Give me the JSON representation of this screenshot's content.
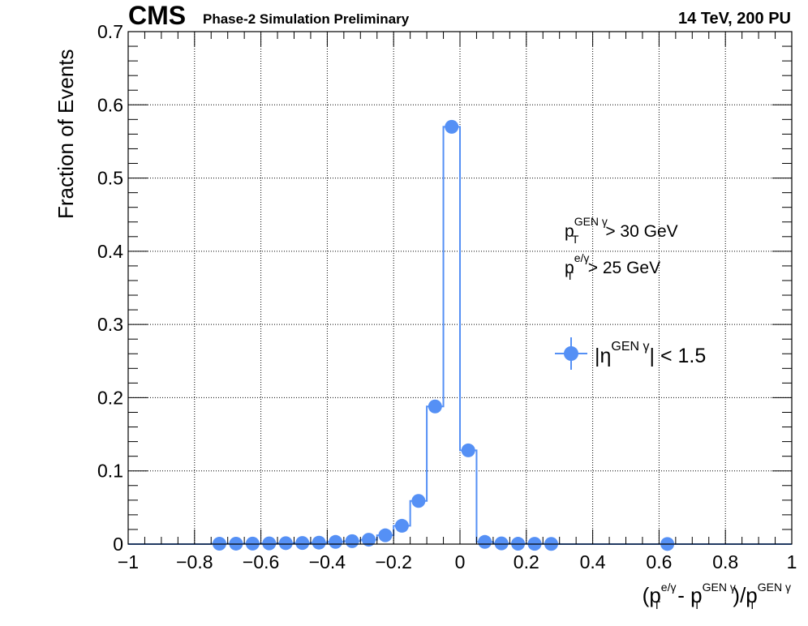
{
  "header": {
    "cms": "CMS",
    "subtitle": "Phase-2 Simulation Preliminary",
    "energy": "14 TeV, 200 PU"
  },
  "annotations": {
    "line1": {
      "p": "p",
      "T": "T",
      "sup": "GEN γ",
      "rest": " > 30 GeV"
    },
    "line2": {
      "p": "p",
      "T": "T",
      "sup": "e/γ",
      "rest": " > 25 GeV"
    }
  },
  "legend": {
    "bar_open": "|η",
    "sup": "GEN γ",
    "rest": "| < 1.5"
  },
  "axes": {
    "ylabel": "Fraction of Events",
    "xlabel": {
      "open": "(p",
      "T1": "T",
      "sup1": "e/γ",
      "mid": " - p",
      "T2": "T",
      "sup2": "GEN γ",
      "div": ")/p",
      "T3": "T",
      "sup3": "GEN γ"
    }
  },
  "colors": {
    "series": "#5590f5",
    "grid": "#000000"
  },
  "chart_data": {
    "type": "line",
    "style": "histogram-step-with-markers",
    "xlim": [
      -1,
      1
    ],
    "ylim": [
      0,
      0.7
    ],
    "grid": true,
    "legend_position": "right-middle",
    "x_ticks": [
      "−1",
      "−0.8",
      "−0.6",
      "−0.4",
      "−0.2",
      "0",
      "0.2",
      "0.4",
      "0.6",
      "0.8",
      "1"
    ],
    "y_ticks": [
      "0",
      "0.1",
      "0.2",
      "0.3",
      "0.4",
      "0.5",
      "0.6",
      "0.7"
    ],
    "x_tick_values": [
      -1,
      -0.8,
      -0.6,
      -0.4,
      -0.2,
      0,
      0.2,
      0.4,
      0.6,
      0.8,
      1
    ],
    "y_tick_values": [
      0,
      0.1,
      0.2,
      0.3,
      0.4,
      0.5,
      0.6,
      0.7
    ],
    "bin_width": 0.05,
    "series": [
      {
        "name": "|η^GEN γ| < 1.5",
        "x": [
          -0.975,
          -0.925,
          -0.875,
          -0.825,
          -0.775,
          -0.725,
          -0.675,
          -0.625,
          -0.575,
          -0.525,
          -0.475,
          -0.425,
          -0.375,
          -0.325,
          -0.275,
          -0.225,
          -0.175,
          -0.125,
          -0.075,
          -0.025,
          0.025,
          0.075,
          0.125,
          0.175,
          0.225,
          0.275,
          0.325,
          0.375,
          0.425,
          0.475,
          0.525,
          0.575,
          0.625,
          0.675,
          0.725,
          0.775,
          0.825,
          0.875,
          0.925,
          0.975
        ],
        "y": [
          0,
          0,
          0,
          0,
          0,
          0.0005,
          0.0006,
          0.0007,
          0.001,
          0.0013,
          0.0015,
          0.002,
          0.003,
          0.004,
          0.006,
          0.012,
          0.025,
          0.059,
          0.188,
          0.57,
          0.128,
          0.003,
          0.001,
          0.0005,
          0.0004,
          0.0003,
          0,
          0,
          0,
          0,
          0,
          0,
          0.0002,
          0,
          0,
          0,
          0,
          0,
          0,
          0
        ],
        "markers_shown": [
          false,
          false,
          false,
          false,
          false,
          true,
          true,
          true,
          true,
          true,
          true,
          true,
          true,
          true,
          true,
          true,
          true,
          true,
          true,
          true,
          true,
          true,
          true,
          true,
          true,
          true,
          false,
          false,
          false,
          false,
          false,
          false,
          true,
          false,
          false,
          false,
          false,
          false,
          false,
          false
        ]
      }
    ]
  }
}
